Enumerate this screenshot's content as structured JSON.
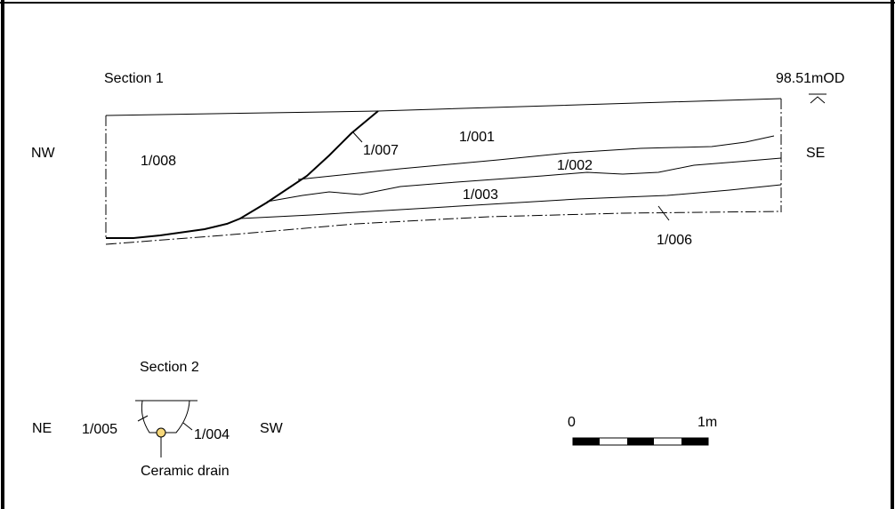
{
  "section1": {
    "title": "Section 1",
    "level": "98.51mOD",
    "orient_left": "NW",
    "orient_right": "SE",
    "contexts": [
      "1/001",
      "1/002",
      "1/003",
      "1/006",
      "1/007",
      "1/008"
    ]
  },
  "section2": {
    "title": "Section 2",
    "orient_left": "NE",
    "orient_right": "SW",
    "contexts": [
      "1/005",
      "1/004"
    ],
    "drain_label": "Ceramic drain",
    "drain_color": "#f6d77a"
  },
  "scale": {
    "start": "0",
    "end": "1m"
  }
}
